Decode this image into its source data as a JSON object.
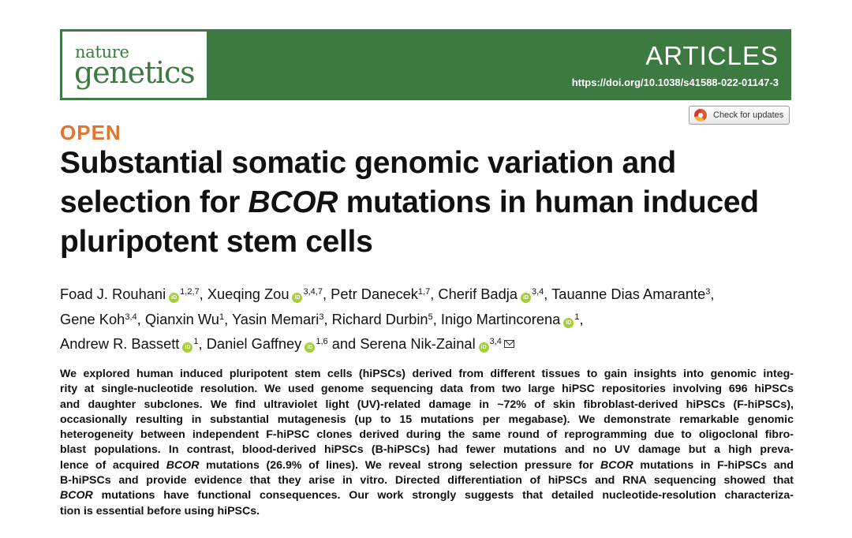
{
  "header": {
    "logo_line1": "nature",
    "logo_line2": "genetics",
    "section": "ARTICLES",
    "doi": "https://doi.org/10.1038/s41588-022-01147-3",
    "check_updates": "Check for updates"
  },
  "article": {
    "access": "OPEN",
    "title_lines": [
      [
        "Substantial somatic genomic variation and"
      ],
      [
        "selection for ",
        "BCOR",
        " mutations in human induced"
      ],
      [
        "pluripotent stem cells"
      ]
    ],
    "authors": [
      {
        "name": "Foad J. Rouhani",
        "orcid": true,
        "aff": "1,2,7",
        "sep": ","
      },
      {
        "name": "Xueqing Zou",
        "orcid": true,
        "aff": "3,4,7",
        "sep": ","
      },
      {
        "name": "Petr Danecek",
        "orcid": false,
        "aff": "1,7",
        "sep": ","
      },
      {
        "name": "Cherif Badja",
        "orcid": true,
        "aff": "3,4",
        "sep": ","
      },
      {
        "name": "Tauanne Dias Amarante",
        "orcid": false,
        "aff": "3",
        "sep": ",",
        "break": true
      },
      {
        "name": "Gene Koh",
        "orcid": false,
        "aff": "3,4",
        "sep": ","
      },
      {
        "name": "Qianxin Wu",
        "orcid": false,
        "aff": "1",
        "sep": ","
      },
      {
        "name": "Yasin Memari",
        "orcid": false,
        "aff": "3",
        "sep": ","
      },
      {
        "name": "Richard Durbin",
        "orcid": false,
        "aff": "5",
        "sep": ","
      },
      {
        "name": "Inigo Martincorena",
        "orcid": true,
        "aff": "1",
        "sep": ",",
        "break": true
      },
      {
        "name": "Andrew R. Bassett",
        "orcid": true,
        "aff": "1",
        "sep": ","
      },
      {
        "name": "Daniel Gaffney",
        "orcid": true,
        "aff": "1,6",
        "sep": " and"
      },
      {
        "name": "Serena Nik-Zainal",
        "orcid": true,
        "aff": "3,4",
        "sep": "",
        "mail": true
      }
    ],
    "orcid_glyph": "iD",
    "abstract_lines": [
      [
        "We explored human induced pluripotent stem cells (hiPSCs) derived from different tissues to gain insights into genomic integ-"
      ],
      [
        "rity at single-nucleotide resolution. We used genome sequencing data from two large hiPSC repositories involving 696 hiPSCs"
      ],
      [
        "and daughter subclones. We find ultraviolet light (UV)-related damage in ~72% of skin fibroblast-derived hiPSCs (F-hiPSCs),"
      ],
      [
        "occasionally resulting in substantial mutagenesis (up to 15 mutations per megabase). We demonstrate remarkable genomic"
      ],
      [
        "heterogeneity between independent F-hiPSC clones derived during the same round of reprogramming due to oligoclonal fibro-"
      ],
      [
        "blast populations. In contrast, blood-derived hiPSCs (B-hiPSCs) had fewer mutations and no UV damage but a high preva-"
      ],
      [
        "lence of acquired ",
        "BCOR",
        " mutations (26.9% of lines). We reveal strong selection pressure for ",
        "BCOR",
        " mutations in F-hiPSCs and"
      ],
      [
        "B-hiPSCs and provide evidence that they arise in vitro. Directed differentiation of hiPSCs and RNA sequencing showed that"
      ],
      [
        "BCOR",
        " mutations have functional consequences. Our work strongly suggests that detailed nucleotide-resolution characteriza-"
      ],
      [
        "tion is essential before using hiPSCs."
      ]
    ]
  },
  "colors": {
    "brand_green": "#3d7a42",
    "open_orange": "#e2742f",
    "orcid_green": "#a6ce39"
  }
}
